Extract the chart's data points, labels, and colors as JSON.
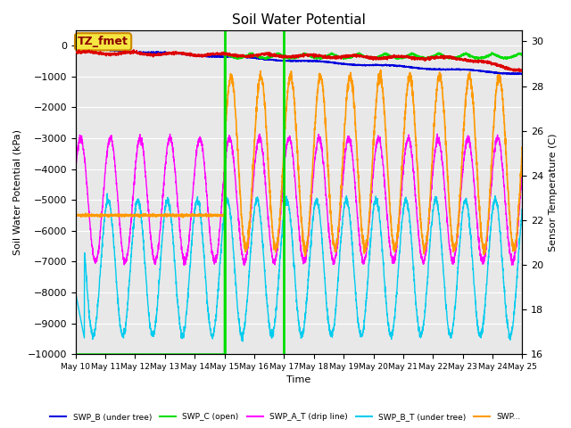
{
  "title": "Soil Water Potential",
  "xlabel": "Time",
  "ylabel_left": "Soil Water Potential (kPa)",
  "ylabel_right": "Sensor Temperature (C)",
  "ylim_left": [
    -10000,
    500
  ],
  "ylim_right": [
    16,
    30.5
  ],
  "background_color": "#e8e8e8",
  "annotation_label": "TZ_fmet",
  "annotation_bg": "#f5e642",
  "annotation_border": "#cc8800",
  "tick_labels": [
    "May 10",
    "May 11",
    "May 12",
    "May 13",
    "May 14",
    "May 15",
    "May 16",
    "May 17",
    "May 18",
    "May 19",
    "May 20",
    "May 21",
    "May 22",
    "May 23",
    "May 24",
    "May 25"
  ],
  "vlines_days": [
    5,
    7
  ],
  "colors": {
    "red": "#dd0000",
    "blue": "#0000dd",
    "green": "#00dd00",
    "magenta": "#ff00ff",
    "cyan": "#00ccee",
    "orange": "#ff9900"
  },
  "legend_labels": [
    "SWP_B (under tree)",
    "SWP_C (open)",
    "SWP_A_T (drip line)",
    "SWP_B_T (under tree)",
    "SWP..."
  ]
}
